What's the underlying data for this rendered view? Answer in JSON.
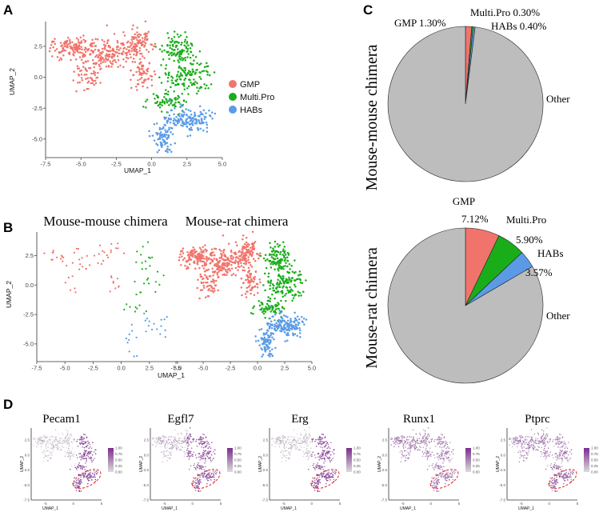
{
  "panel_letters": {
    "a": "A",
    "b": "B",
    "c": "C",
    "d": "D"
  },
  "colors": {
    "GMP": "#f0746c",
    "Multi.Pro": "#1aad1a",
    "HABs": "#5b9be6",
    "Other": "#bdbdbd",
    "grad_low": "#d8d8d8",
    "grad_high": "#7b2d8e",
    "outline": "#e02020"
  },
  "chart_data": [
    {
      "id": "A",
      "type": "scatter",
      "xlabel": "UMAP_1",
      "ylabel": "UMAP_2",
      "xlim": [
        -7.5,
        5.0
      ],
      "ylim": [
        -6.5,
        4.5
      ],
      "xticks": [
        "-7.5",
        "-5.0",
        "-2.5",
        "0.0",
        "2.5",
        "5.0"
      ],
      "yticks": [
        "2.5",
        "0.0",
        "-2.5",
        "-5.0"
      ],
      "legend": [
        "GMP",
        "Multi.Pro",
        "HABs"
      ],
      "legend_position": "right"
    },
    {
      "id": "B-left",
      "type": "scatter",
      "title": "Mouse-mouse chimera",
      "xlabel": "UMAP_1",
      "ylabel": "UMAP_2",
      "xlim": [
        -7.5,
        5.0
      ],
      "ylim": [
        -6.5,
        4.5
      ],
      "xticks": [
        "-7.5",
        "-5.0",
        "-2.5",
        "0.0",
        "2.5",
        "5.0"
      ],
      "yticks": [
        "2.5",
        "0.0",
        "-2.5",
        "-5.0"
      ]
    },
    {
      "id": "B-right",
      "type": "scatter",
      "title": "Mouse-rat chimera",
      "xlabel": "UMAP_1",
      "xlim": [
        -7.5,
        5.0
      ],
      "ylim": [
        -6.5,
        4.5
      ],
      "xticks": [
        "-7.5",
        "-5.0",
        "-2.5",
        "0.0",
        "2.5",
        "5.0"
      ]
    },
    {
      "id": "C-top",
      "type": "pie",
      "side_label": "Mouse-mouse chimera",
      "slices": [
        {
          "name": "GMP",
          "value": 1.3,
          "label": "GMP 1.30%"
        },
        {
          "name": "Multi.Pro",
          "value": 0.3,
          "label": "Multi.Pro 0.30%"
        },
        {
          "name": "HABs",
          "value": 0.4,
          "label": "HABs 0.40%"
        },
        {
          "name": "Other",
          "value": 98.0,
          "label": "Other"
        }
      ]
    },
    {
      "id": "C-bottom",
      "type": "pie",
      "side_label": "Mouse-rat chimera",
      "slices": [
        {
          "name": "GMP",
          "value": 7.12,
          "label": "GMP",
          "pct": "7.12%"
        },
        {
          "name": "Multi.Pro",
          "value": 5.9,
          "label": "Multi.Pro",
          "pct": "5.90%"
        },
        {
          "name": "HABs",
          "value": 3.57,
          "label": "HABs",
          "pct": "3.57%"
        },
        {
          "name": "Other",
          "value": 83.41,
          "label": "Other"
        }
      ]
    },
    {
      "id": "D",
      "type": "scatter",
      "genes": [
        "Pecam1",
        "Egfl7",
        "Erg",
        "Runx1",
        "Ptprc"
      ],
      "xlabel": "UMAP_1",
      "ylabel": "UMAP_2",
      "xticks": [
        "-5",
        "0",
        "5"
      ],
      "yticks": [
        "2.5",
        "0.0",
        "-2.5",
        "-5.0",
        "-7.5"
      ],
      "colorbar_ticks": [
        "1.00",
        "0.75",
        "0.50",
        "0.25",
        "0.00"
      ],
      "colorbar_range": [
        0,
        1
      ]
    }
  ]
}
